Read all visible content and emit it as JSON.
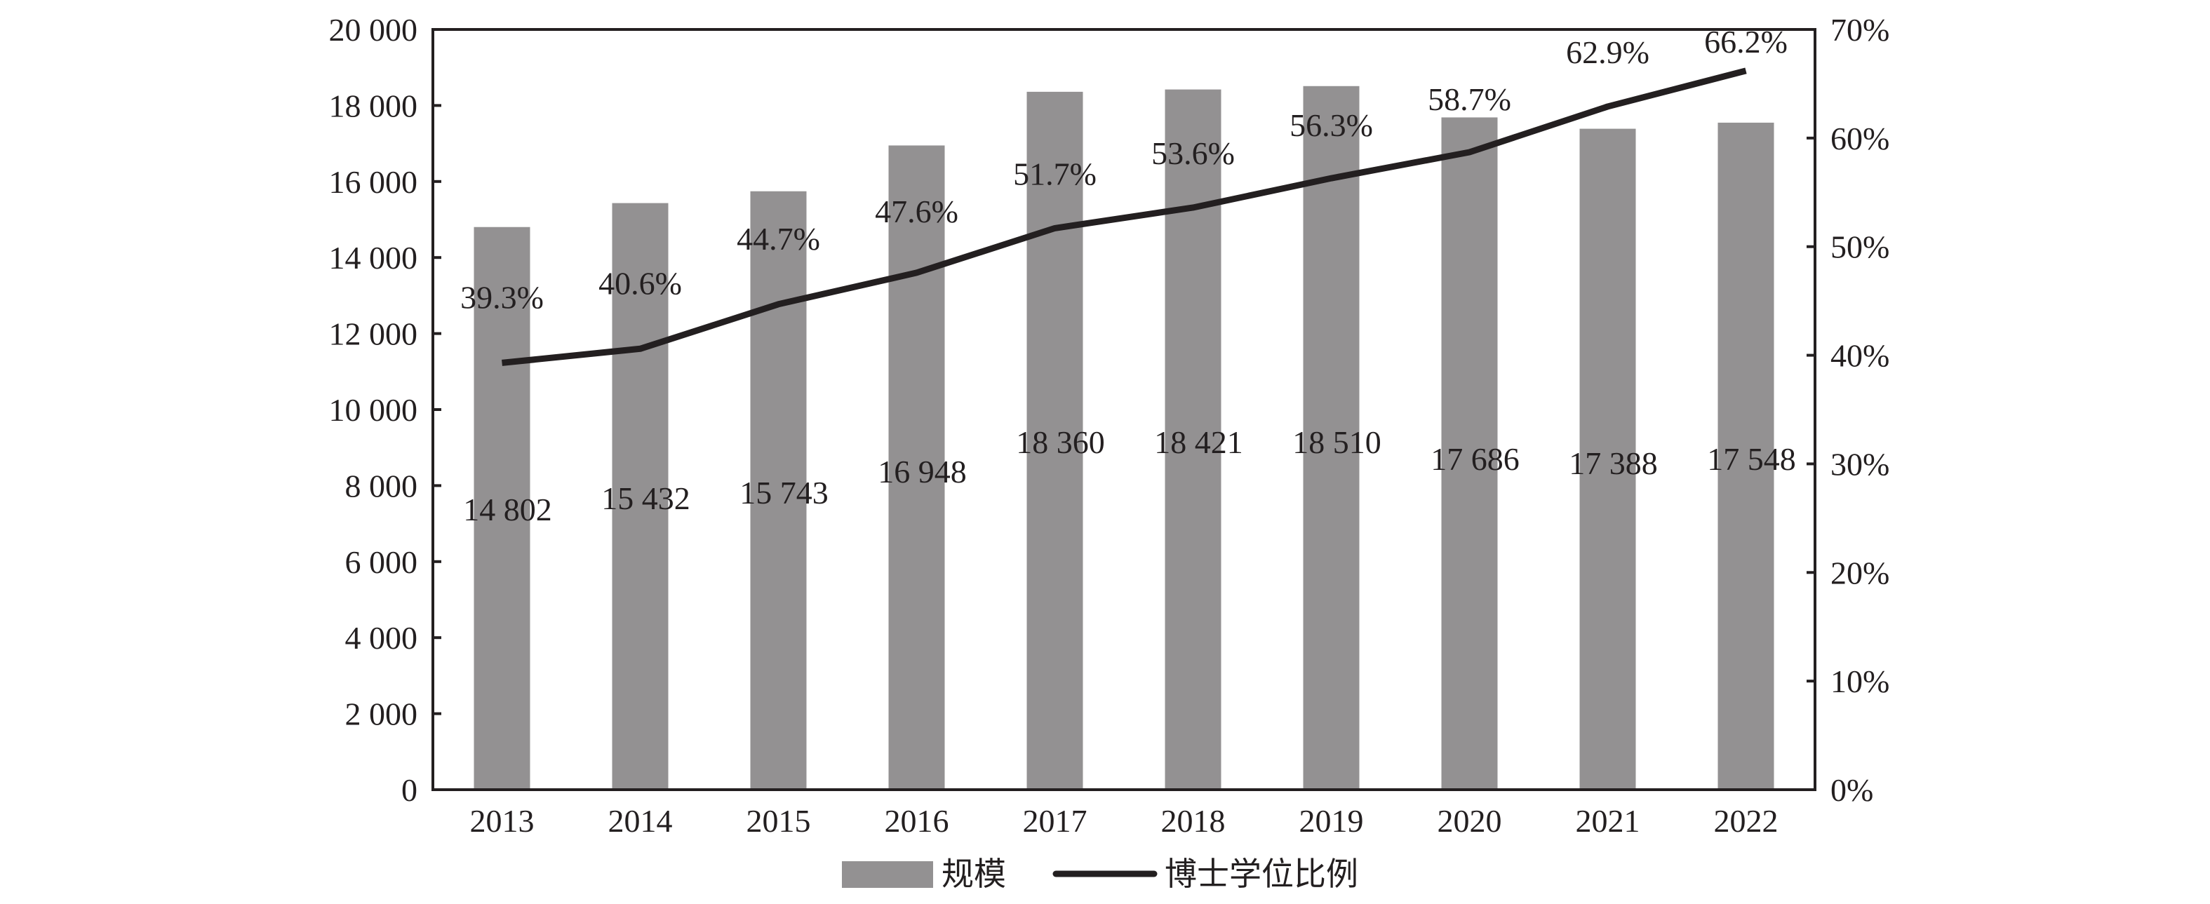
{
  "chart_data": {
    "type": "bar+line",
    "title": "",
    "categories": [
      "2013",
      "2014",
      "2015",
      "2016",
      "2017",
      "2018",
      "2019",
      "2020",
      "2021",
      "2022"
    ],
    "series": [
      {
        "name": "规模",
        "type": "bar",
        "axis": "left",
        "color": "#939192",
        "values": [
          14802,
          15432,
          15743,
          16948,
          18360,
          18421,
          18510,
          17686,
          17388,
          17548
        ],
        "labels": [
          "14 802",
          "15 432",
          "15 743",
          "16 948",
          "18 360",
          "18 421",
          "18 510",
          "17 686",
          "17 388",
          "17 548"
        ]
      },
      {
        "name": "博士学位比例",
        "type": "line",
        "axis": "right",
        "color": "#231f20",
        "values": [
          39.3,
          40.6,
          44.7,
          47.6,
          51.7,
          53.6,
          56.3,
          58.7,
          62.9,
          66.2
        ],
        "labels": [
          "39.3%",
          "40.6%",
          "44.7%",
          "47.6%",
          "51.7%",
          "53.6%",
          "56.3%",
          "58.7%",
          "62.9%",
          "66.2%"
        ]
      }
    ],
    "y_left": {
      "range": [
        0,
        20000
      ],
      "ticks": [
        "0",
        "2 000",
        "4 000",
        "6 000",
        "8 000",
        "10 000",
        "12 000",
        "14 000",
        "16 000",
        "18 000",
        "20 000"
      ]
    },
    "y_right": {
      "range": [
        0,
        70
      ],
      "ticks": [
        "0%",
        "10%",
        "20%",
        "30%",
        "40%",
        "50%",
        "60%",
        "70%"
      ]
    },
    "grid": false,
    "legend": {
      "placement": "bottom",
      "entries": [
        "规模",
        "博士学位比例"
      ]
    }
  }
}
